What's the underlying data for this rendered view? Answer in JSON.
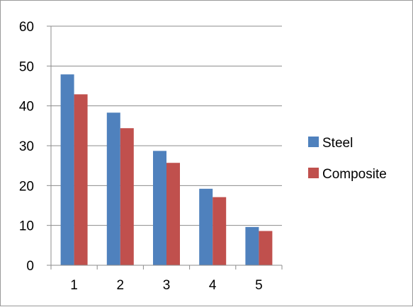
{
  "chart_data": {
    "type": "bar",
    "title": "",
    "xlabel": "",
    "ylabel": "",
    "categories": [
      "1",
      "2",
      "3",
      "4",
      "5"
    ],
    "series": [
      {
        "name": "Steel",
        "color": "#4F81BD",
        "values": [
          47.9,
          38.3,
          28.7,
          19.2,
          9.6
        ]
      },
      {
        "name": "Composite",
        "color": "#C0504D",
        "values": [
          42.9,
          34.4,
          25.7,
          17.1,
          8.6
        ]
      }
    ],
    "ylim": [
      0,
      60
    ],
    "yticks": [
      "0",
      "10",
      "20",
      "30",
      "40",
      "50",
      "60"
    ],
    "grid": true,
    "legend_position": "right"
  }
}
